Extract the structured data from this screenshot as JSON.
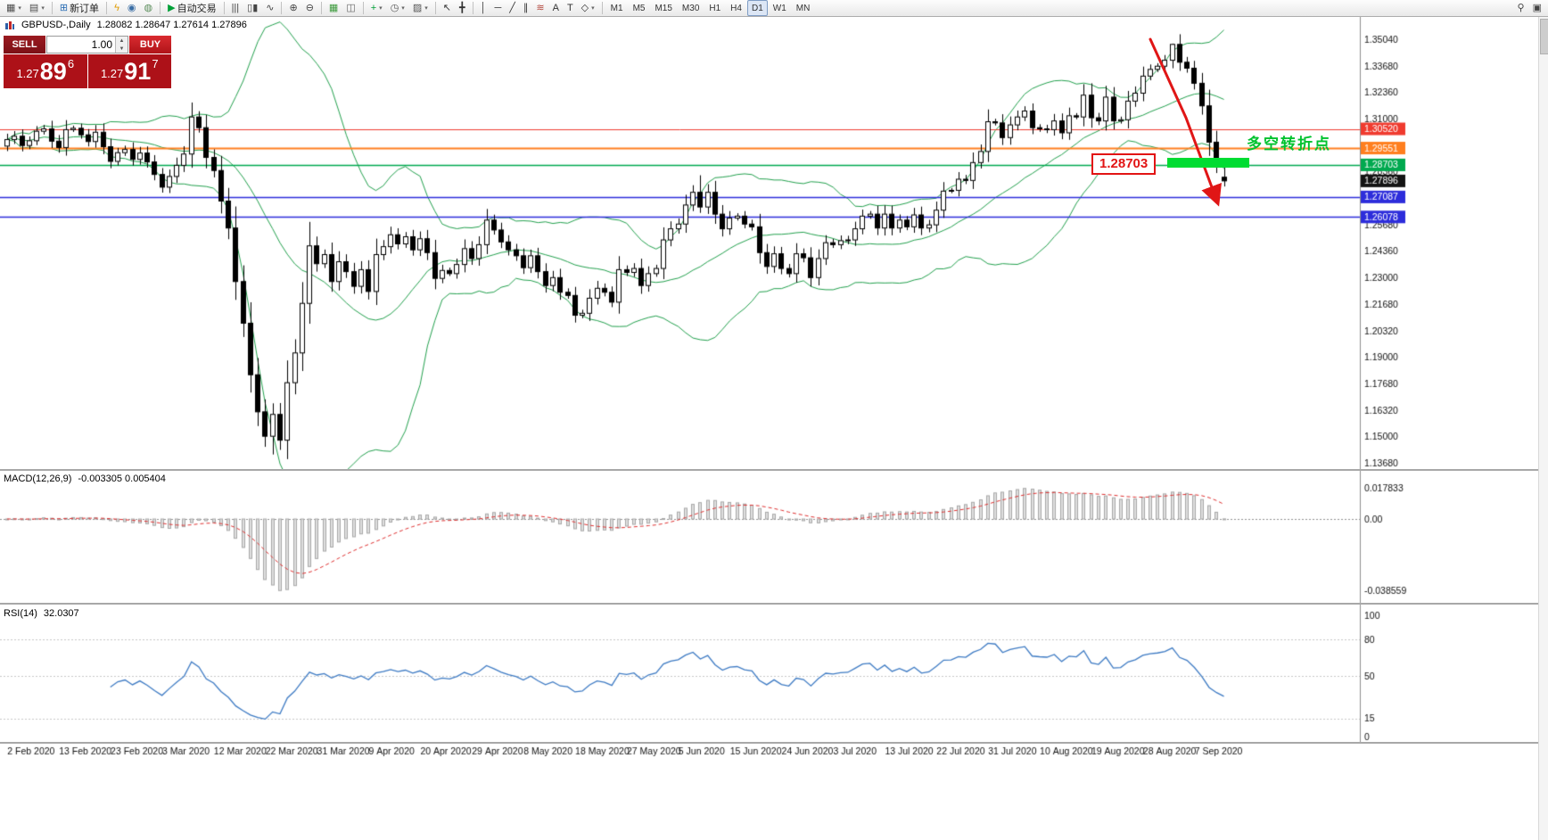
{
  "toolbar": {
    "new_order_label": "新订单",
    "autotrade_label": "自动交易",
    "timeframes": [
      "M1",
      "M5",
      "M15",
      "M30",
      "H1",
      "H4",
      "D1",
      "W1",
      "MN"
    ],
    "active_timeframe": "D1",
    "icon_groups": [
      [
        {
          "name": "new-chart-icon",
          "glyph": "▦",
          "color": "#4d4d4d",
          "dd": true
        },
        {
          "name": "profiles-icon",
          "glyph": "▤",
          "color": "#4d4d4d",
          "dd": true
        }
      ],
      [
        {
          "name": "new-order-button",
          "glyph": "⊞",
          "color": "#2a6db5",
          "label_key": "new_order_label"
        }
      ],
      [
        {
          "name": "quotes-icon",
          "glyph": "ϟ",
          "color": "#e09b00"
        },
        {
          "name": "alerts-icon",
          "glyph": "◉",
          "color": "#3a6ea5"
        },
        {
          "name": "market-icon",
          "glyph": "◍",
          "color": "#5d8f5d"
        }
      ],
      [
        {
          "name": "autotrade-button",
          "glyph": "▶",
          "color": "#00a037",
          "label_key": "autotrade_label"
        }
      ],
      [
        {
          "name": "bar-chart-mode-icon",
          "glyph": "|||",
          "color": "#444"
        },
        {
          "name": "candle-chart-mode-icon",
          "glyph": "▯▮",
          "color": "#444"
        },
        {
          "name": "line-chart-mode-icon",
          "glyph": "∿",
          "color": "#444"
        }
      ],
      [
        {
          "name": "zoom-in-icon",
          "glyph": "⊕",
          "color": "#444"
        },
        {
          "name": "zoom-out-icon",
          "glyph": "⊖",
          "color": "#444"
        }
      ],
      [
        {
          "name": "tile-windows-icon",
          "glyph": "▦",
          "color": "#3c9a3c"
        },
        {
          "name": "cascade-windows-icon",
          "glyph": "◫",
          "color": "#666"
        }
      ],
      [
        {
          "name": "indicators-icon",
          "glyph": "+",
          "color": "#00a037",
          "dd": true
        },
        {
          "name": "periods-icon",
          "glyph": "◷",
          "color": "#555",
          "dd": true
        },
        {
          "name": "templates-icon",
          "glyph": "▨",
          "color": "#555",
          "dd": true
        }
      ],
      [
        {
          "name": "cursor-icon",
          "glyph": "↖",
          "color": "#333"
        },
        {
          "name": "crosshair-icon",
          "glyph": "╋",
          "color": "#333"
        }
      ],
      [
        {
          "name": "vertical-line-icon",
          "glyph": "│",
          "color": "#333"
        },
        {
          "name": "horizontal-line-icon",
          "glyph": "─",
          "color": "#333"
        },
        {
          "name": "trendline-icon",
          "glyph": "╱",
          "color": "#333"
        },
        {
          "name": "channel-icon",
          "glyph": "∥",
          "color": "#333"
        },
        {
          "name": "fibonacci-icon",
          "glyph": "≋",
          "color": "#b5493f"
        },
        {
          "name": "text-icon",
          "glyph": "A",
          "color": "#333"
        },
        {
          "name": "text-label-icon",
          "glyph": "T",
          "color": "#333"
        },
        {
          "name": "shapes-icon",
          "glyph": "◇",
          "color": "#333",
          "dd": true
        }
      ]
    ],
    "right_icons": [
      {
        "name": "search-icon",
        "glyph": "⚲",
        "color": "#444"
      },
      {
        "name": "fullscreen-icon",
        "glyph": "▣",
        "color": "#444"
      }
    ]
  },
  "chart_header": {
    "title": "GBPUSD-,Daily",
    "ohlc": "1.28082 1.28647 1.27614 1.27896"
  },
  "trade_panel": {
    "sell_label": "SELL",
    "buy_label": "BUY",
    "volume": "1.00",
    "bid_prefix": "1.27",
    "bid_big": "89",
    "bid_sup": "6",
    "ask_prefix": "1.27",
    "ask_big": "91",
    "ask_sup": "7"
  },
  "annotations": {
    "price_flag": "1.28703",
    "turning_point": "多空转折点"
  },
  "colors": {
    "bollinger": "#23a14e",
    "candle_up": "#ffffff",
    "candle_down": "#000000",
    "candle_outline": "#000000",
    "macd_bar_fill": "#dfdfdf",
    "macd_bar_stroke": "#a8a8a8",
    "macd_signal": "#e03131",
    "rsi_line": "#3e7bc4",
    "axis_text": "#111111",
    "arrow_red": "#e01616",
    "zone_green": "#00dc32"
  },
  "chart_data": {
    "type": "candlestick",
    "symbol": "GBPUSD-",
    "period": "Daily",
    "last_ohlc": {
      "open": 1.28082,
      "high": 1.28647,
      "low": 1.27614,
      "close": 1.27896
    },
    "first_open": 1.2965,
    "closes": [
      1.2998,
      1.3015,
      1.2968,
      1.2992,
      1.304,
      1.3052,
      1.299,
      1.2958,
      1.3048,
      1.3055,
      1.3022,
      1.2988,
      1.3035,
      1.2962,
      1.2888,
      1.2932,
      1.2948,
      1.2898,
      1.293,
      1.2885,
      1.2822,
      1.2758,
      1.2812,
      1.2868,
      1.2925,
      1.3112,
      1.3058,
      1.2908,
      1.2842,
      1.2688,
      1.2552,
      1.2282,
      1.2072,
      1.1812,
      1.1625,
      1.1502,
      1.1612,
      1.1482,
      1.1772,
      1.1922,
      1.2172,
      1.2462,
      1.2372,
      1.2418,
      1.2282,
      1.2382,
      1.2332,
      1.2258,
      1.2342,
      1.2232,
      1.2418,
      1.2458,
      1.2518,
      1.2472,
      1.2508,
      1.2442,
      1.2498,
      1.2428,
      1.2298,
      1.2338,
      1.2322,
      1.2368,
      1.2448,
      1.2398,
      1.2468,
      1.2592,
      1.2542,
      1.2482,
      1.2442,
      1.2412,
      1.2352,
      1.2412,
      1.2332,
      1.2262,
      1.2302,
      1.2228,
      1.2212,
      1.2112,
      1.2122,
      1.2198,
      1.2248,
      1.2228,
      1.2178,
      1.2342,
      1.2328,
      1.2348,
      1.2262,
      1.2322,
      1.2348,
      1.2492,
      1.2548,
      1.2572,
      1.2668,
      1.2732,
      1.2658,
      1.2732,
      1.2622,
      1.2548,
      1.2602,
      1.2612,
      1.2572,
      1.2558,
      1.2428,
      1.2358,
      1.2422,
      1.2348,
      1.2322,
      1.2422,
      1.2402,
      1.2302,
      1.2398,
      1.2478,
      1.2468,
      1.2488,
      1.2492,
      1.2548,
      1.2612,
      1.2622,
      1.2552,
      1.2622,
      1.2552,
      1.2592,
      1.2558,
      1.2618,
      1.2552,
      1.2568,
      1.2642,
      1.2738,
      1.2742,
      1.2798,
      1.2792,
      1.2882,
      1.2938,
      1.3088,
      1.3082,
      1.3008,
      1.3072,
      1.3112,
      1.3142,
      1.3058,
      1.3052,
      1.3048,
      1.3092,
      1.3032,
      1.3118,
      1.3112,
      1.3222,
      1.3108,
      1.3092,
      1.3212,
      1.3092,
      1.3098,
      1.3192,
      1.3232,
      1.3318,
      1.3352,
      1.3368,
      1.3398,
      1.3478,
      1.3388,
      1.3358,
      1.3282,
      1.3168,
      1.2985,
      1.2878,
      1.27896
    ],
    "overrides": {
      "25": {
        "h": 1.3185
      },
      "36": {
        "l": 1.141
      },
      "94": {
        "h": 1.2818
      },
      "158": {
        "h": 1.3482
      },
      "165": {
        "o": 1.28082,
        "h": 1.28647,
        "l": 1.27614,
        "c": 1.27896
      }
    },
    "bollinger": {
      "period": 20,
      "deviation": 2
    },
    "y_ticks": [
      "1.35040",
      "1.33680",
      "1.32360",
      "1.31000",
      "1.29680",
      "1.28360",
      "1.27040",
      "1.25680",
      "1.24360",
      "1.23000",
      "1.21680",
      "1.20320",
      "1.19000",
      "1.17680",
      "1.16320",
      "1.15000",
      "1.13680"
    ],
    "levels": [
      {
        "value": 1.3052,
        "label": "1.30520",
        "color": "#f03b2f",
        "width": 1
      },
      {
        "value": 1.29551,
        "label": "1.29551",
        "color": "#ff7f1f",
        "width": 2
      },
      {
        "value": 1.28703,
        "label": "1.28703",
        "color": "#00a94f",
        "width": 1.5
      },
      {
        "value": 1.27087,
        "label": "1.27087",
        "color": "#2d2ddb",
        "width": 1.5
      },
      {
        "value": 1.26078,
        "label": "1.26078",
        "color": "#2d2ddb",
        "width": 1.5
      }
    ],
    "current_price": {
      "value": 1.27896,
      "label": "1.27896",
      "color": "#141414"
    },
    "x_label_indices": [
      1,
      8,
      15,
      22,
      29,
      36,
      43,
      50,
      57,
      64,
      71,
      78,
      85,
      92,
      99,
      106,
      113,
      120,
      127,
      134,
      141,
      148,
      155,
      162
    ],
    "x_labels": [
      "2 Feb 2020",
      "13 Feb 2020",
      "23 Feb 2020",
      "3 Mar 2020",
      "12 Mar 2020",
      "22 Mar 2020",
      "31 Mar 2020",
      "9 Apr 2020",
      "20 Apr 2020",
      "29 Apr 2020",
      "8 May 2020",
      "18 May 2020",
      "27 May 2020",
      "5 Jun 2020",
      "15 Jun 2020",
      "24 Jun 2020",
      "3 Jul 2020",
      "13 Jul 2020",
      "22 Jul 2020",
      "31 Jul 2020",
      "10 Aug 2020",
      "19 Aug 2020",
      "28 Aug 2020",
      "7 Sep 2020"
    ]
  },
  "macd": {
    "title": "MACD(12,26,9)",
    "values": "-0.003305 0.005404",
    "fast": 12,
    "slow": 26,
    "signal": 9,
    "axis_labels": [
      "0.017833",
      "0.00",
      "-0.038559"
    ]
  },
  "rsi": {
    "title": "RSI(14)",
    "value": "32.0307",
    "period": 14,
    "axis_labels": [
      "100",
      "80",
      "50",
      "15",
      "0"
    ],
    "axis_values": [
      100,
      80,
      50,
      15,
      0
    ],
    "levels": [
      80,
      50,
      15
    ]
  }
}
